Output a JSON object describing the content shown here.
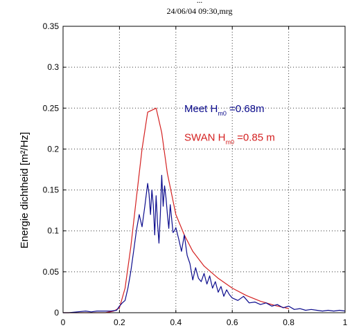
{
  "chart_data": {
    "type": "line",
    "title_top": "...",
    "title": "24/06/04 09:30,mrg",
    "xlabel": "",
    "ylabel": "Energie dichtheid [m²/Hz]",
    "xlim": [
      0,
      1
    ],
    "ylim": [
      0,
      0.35
    ],
    "xticks": [
      0,
      0.2,
      0.4,
      0.6,
      0.8,
      1
    ],
    "xtick_labels": [
      "0",
      "0.2",
      "0.4",
      "0.6",
      "0.8",
      "1"
    ],
    "yticks": [
      0,
      0.05,
      0.1,
      0.15,
      0.2,
      0.25,
      0.3,
      0.35
    ],
    "ytick_labels": [
      "0",
      "0.05",
      "0.1",
      "0.15",
      "0.2",
      "0.25",
      "0.3",
      "0.35"
    ],
    "grid": true,
    "colors": {
      "meet": "#0a0a8c",
      "swan": "#d42020",
      "axis": "#000000",
      "grid": "#333333"
    },
    "annotations": [
      {
        "id": "meet",
        "prefix": "Meet H",
        "sub": "m0",
        "suffix": " =0.68m",
        "color": "#0a0a8c",
        "at": [
          0.43,
          0.245
        ]
      },
      {
        "id": "swan",
        "prefix": "SWAN H",
        "sub": "m0",
        "suffix": " =0.85 m",
        "color": "#d42020",
        "at": [
          0.43,
          0.21
        ]
      }
    ],
    "series": [
      {
        "id": "swan",
        "color": "#d42020",
        "x": [
          0.0,
          0.15,
          0.18,
          0.2,
          0.22,
          0.24,
          0.26,
          0.28,
          0.3,
          0.33,
          0.35,
          0.37,
          0.4,
          0.43,
          0.46,
          0.5,
          0.55,
          0.6,
          0.65,
          0.7,
          0.75,
          0.8
        ],
        "y": [
          0.0,
          0.0,
          0.002,
          0.006,
          0.03,
          0.08,
          0.14,
          0.2,
          0.245,
          0.25,
          0.22,
          0.17,
          0.12,
          0.095,
          0.075,
          0.057,
          0.042,
          0.03,
          0.021,
          0.014,
          0.009,
          0.005
        ]
      },
      {
        "id": "meet",
        "color": "#0a0a8c",
        "x": [
          0.0,
          0.02,
          0.05,
          0.08,
          0.1,
          0.12,
          0.15,
          0.17,
          0.19,
          0.2,
          0.21,
          0.22,
          0.23,
          0.24,
          0.25,
          0.26,
          0.27,
          0.28,
          0.29,
          0.3,
          0.305,
          0.31,
          0.315,
          0.32,
          0.325,
          0.33,
          0.335,
          0.34,
          0.345,
          0.35,
          0.355,
          0.36,
          0.365,
          0.37,
          0.375,
          0.38,
          0.385,
          0.39,
          0.395,
          0.4,
          0.41,
          0.42,
          0.43,
          0.44,
          0.45,
          0.46,
          0.47,
          0.48,
          0.49,
          0.5,
          0.51,
          0.52,
          0.53,
          0.54,
          0.55,
          0.56,
          0.57,
          0.58,
          0.59,
          0.6,
          0.62,
          0.64,
          0.66,
          0.68,
          0.7,
          0.72,
          0.74,
          0.76,
          0.78,
          0.8,
          0.82,
          0.84,
          0.86,
          0.88,
          0.9,
          0.92,
          0.94,
          0.96,
          0.98,
          1.0
        ],
        "y": [
          0.0,
          0.0,
          0.001,
          0.002,
          0.001,
          0.002,
          0.002,
          0.002,
          0.003,
          0.008,
          0.012,
          0.015,
          0.03,
          0.05,
          0.075,
          0.1,
          0.12,
          0.105,
          0.13,
          0.158,
          0.145,
          0.12,
          0.15,
          0.132,
          0.095,
          0.143,
          0.11,
          0.085,
          0.12,
          0.168,
          0.13,
          0.155,
          0.14,
          0.12,
          0.103,
          0.132,
          0.115,
          0.098,
          0.1,
          0.104,
          0.09,
          0.075,
          0.095,
          0.07,
          0.06,
          0.04,
          0.055,
          0.042,
          0.038,
          0.048,
          0.035,
          0.045,
          0.03,
          0.038,
          0.025,
          0.032,
          0.02,
          0.028,
          0.022,
          0.018,
          0.015,
          0.02,
          0.012,
          0.013,
          0.01,
          0.012,
          0.008,
          0.01,
          0.006,
          0.008,
          0.004,
          0.005,
          0.003,
          0.004,
          0.003,
          0.002,
          0.003,
          0.002,
          0.003,
          0.002
        ]
      }
    ]
  }
}
